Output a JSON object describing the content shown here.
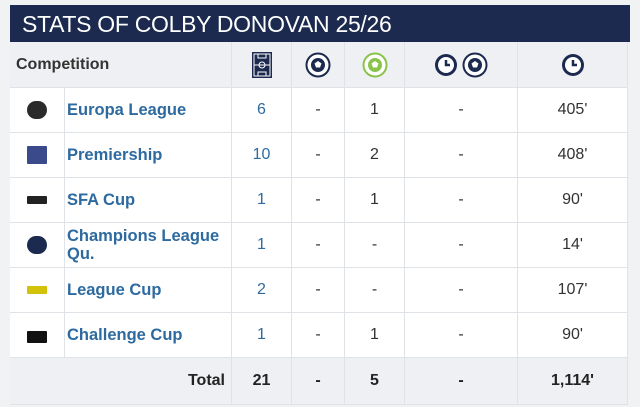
{
  "title": "STATS OF COLBY DONOVAN 25/26",
  "table": {
    "header": "Competition",
    "rows": [
      [
        "Europa League",
        "6",
        "-",
        "1",
        "-",
        "405'"
      ],
      [
        "Premiership",
        "10",
        "-",
        "2",
        "-",
        "408'"
      ],
      [
        "SFA Cup",
        "1",
        "-",
        "1",
        "-",
        "90'"
      ],
      [
        "Champions League Qu.",
        "1",
        "-",
        "-",
        "-",
        "14'"
      ],
      [
        "League Cup",
        "2",
        "-",
        "-",
        "-",
        "107'"
      ],
      [
        "Challenge Cup",
        "1",
        "-",
        "1",
        "-",
        "90'"
      ]
    ],
    "total": [
      "Total",
      "21",
      "-",
      "5",
      "-",
      "1,114'"
    ]
  }
}
